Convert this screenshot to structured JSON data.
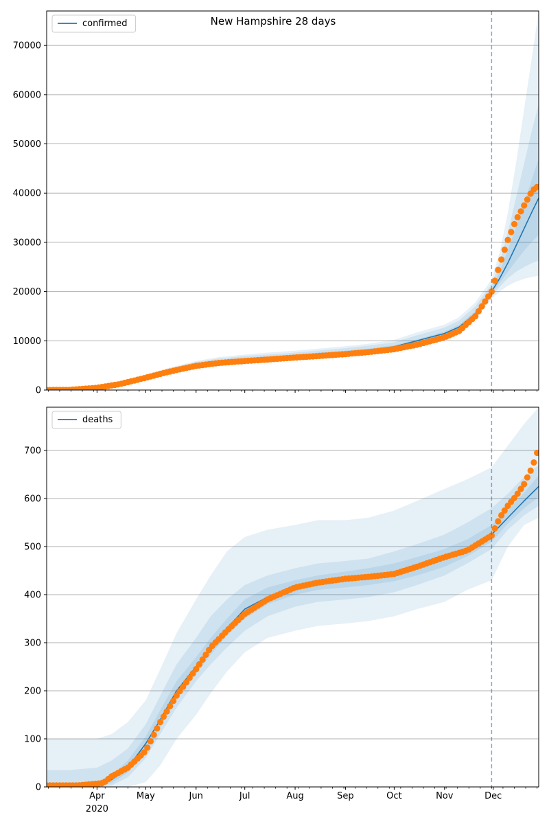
{
  "figure": {
    "title": "New Hampshire 28 days"
  },
  "colors": {
    "line": "#1f77b4",
    "observed": "#ff7f0e",
    "band": "#1f77b4",
    "grid": "#b0b0b0",
    "forecast_marker": "#1f77b4"
  },
  "x_axis": {
    "range": [
      "2020-03-01",
      "2020-12-29"
    ],
    "month_ticks": [
      {
        "date": "2020-04-01",
        "label": "Apr"
      },
      {
        "date": "2020-05-01",
        "label": "May"
      },
      {
        "date": "2020-06-01",
        "label": "Jun"
      },
      {
        "date": "2020-07-01",
        "label": "Jul"
      },
      {
        "date": "2020-08-01",
        "label": "Aug"
      },
      {
        "date": "2020-09-01",
        "label": "Sep"
      },
      {
        "date": "2020-10-01",
        "label": "Oct"
      },
      {
        "date": "2020-11-01",
        "label": "Nov"
      },
      {
        "date": "2020-12-01",
        "label": "Dec"
      }
    ],
    "year_label": "2020",
    "forecast_start": "2020-11-30"
  },
  "chart_data": [
    {
      "type": "line",
      "legend": "confirmed",
      "legend_position": "upper-left",
      "grid": "horizontal",
      "ylim": [
        0,
        77000
      ],
      "yticks": [
        0,
        10000,
        20000,
        30000,
        40000,
        50000,
        60000,
        70000
      ],
      "model": {
        "dates": [
          "2020-03-01",
          "2020-03-15",
          "2020-04-01",
          "2020-04-15",
          "2020-05-01",
          "2020-05-15",
          "2020-06-01",
          "2020-06-15",
          "2020-07-01",
          "2020-07-15",
          "2020-08-01",
          "2020-08-15",
          "2020-09-01",
          "2020-09-15",
          "2020-10-01",
          "2020-10-15",
          "2020-11-01",
          "2020-11-10",
          "2020-11-20",
          "2020-11-30",
          "2020-12-05",
          "2020-12-10",
          "2020-12-15",
          "2020-12-20",
          "2020-12-25",
          "2020-12-29"
        ],
        "values": [
          0,
          40,
          400,
          1300,
          2600,
          3900,
          5200,
          5800,
          6200,
          6500,
          6900,
          7300,
          7700,
          8100,
          8800,
          10000,
          11500,
          12800,
          15500,
          20000,
          22700,
          25800,
          29300,
          32800,
          36300,
          39000
        ],
        "bands": [
          {
            "lower": [
              0,
              0,
              300,
              1100,
              2300,
              3400,
              4500,
              5000,
              5400,
              5700,
              6000,
              6400,
              6800,
              7200,
              7900,
              9100,
              10500,
              11700,
              14300,
              18500,
              20000,
              21200,
              22000,
              22600,
              23000,
              23200
            ],
            "upper": [
              0,
              80,
              550,
              1600,
              3100,
              4500,
              5900,
              6700,
              7200,
              7600,
              8000,
              8400,
              8900,
              9400,
              10200,
              11700,
              13300,
              14800,
              17800,
              22500,
              28000,
              36000,
              46000,
              57000,
              68000,
              77000
            ]
          },
          {
            "lower": [
              0,
              10,
              330,
              1150,
              2400,
              3600,
              4800,
              5300,
              5700,
              6000,
              6300,
              6700,
              7100,
              7500,
              8200,
              9400,
              10800,
              12000,
              14700,
              19000,
              21000,
              22700,
              24000,
              25000,
              25800,
              26300
            ],
            "upper": [
              0,
              70,
              500,
              1500,
              2900,
              4300,
              5700,
              6400,
              6900,
              7200,
              7600,
              8000,
              8500,
              9000,
              9700,
              11100,
              12700,
              14100,
              17000,
              21500,
              26000,
              32000,
              39000,
              46000,
              53000,
              58000
            ]
          },
          {
            "lower": [
              0,
              20,
              360,
              1200,
              2450,
              3700,
              4950,
              5550,
              5950,
              6250,
              6600,
              7000,
              7400,
              7800,
              8500,
              9700,
              11100,
              12300,
              15000,
              19500,
              21800,
              24000,
              26200,
              28300,
              30200,
              31500
            ],
            "upper": [
              0,
              60,
              450,
              1400,
              2750,
              4100,
              5450,
              6050,
              6450,
              6750,
              7200,
              7600,
              8000,
              8400,
              9100,
              10300,
              11900,
              13300,
              16000,
              20500,
              24000,
              28500,
              33000,
              38000,
              43000,
              47000
            ]
          }
        ]
      },
      "observed": {
        "dates": [
          "2020-03-01",
          "2020-03-15",
          "2020-04-01",
          "2020-04-15",
          "2020-05-01",
          "2020-05-15",
          "2020-06-01",
          "2020-06-15",
          "2020-07-01",
          "2020-07-15",
          "2020-08-01",
          "2020-08-15",
          "2020-09-01",
          "2020-09-15",
          "2020-10-01",
          "2020-10-15",
          "2020-11-01",
          "2020-11-10",
          "2020-11-20",
          "2020-11-30",
          "2020-12-05",
          "2020-12-10",
          "2020-12-15",
          "2020-12-20",
          "2020-12-25",
          "2020-12-29"
        ],
        "values": [
          0,
          30,
          450,
          1200,
          2500,
          3700,
          4900,
          5500,
          5900,
          6200,
          6600,
          6900,
          7300,
          7700,
          8300,
          9200,
          10700,
          12000,
          15000,
          20000,
          25500,
          30500,
          34500,
          37500,
          40500,
          41500
        ]
      }
    },
    {
      "type": "line",
      "legend": "deaths",
      "legend_position": "upper-left",
      "grid": "horizontal",
      "ylim": [
        0,
        790
      ],
      "yticks": [
        0,
        100,
        200,
        300,
        400,
        500,
        600,
        700
      ],
      "model": {
        "dates": [
          "2020-03-01",
          "2020-03-15",
          "2020-04-01",
          "2020-04-10",
          "2020-04-20",
          "2020-05-01",
          "2020-05-10",
          "2020-05-20",
          "2020-06-01",
          "2020-06-10",
          "2020-06-20",
          "2020-07-01",
          "2020-07-15",
          "2020-08-01",
          "2020-08-15",
          "2020-09-01",
          "2020-09-15",
          "2020-10-01",
          "2020-10-15",
          "2020-11-01",
          "2020-11-15",
          "2020-11-30",
          "2020-12-10",
          "2020-12-20",
          "2020-12-29"
        ],
        "values": [
          0,
          1,
          5,
          15,
          40,
          90,
          140,
          200,
          250,
          290,
          330,
          370,
          395,
          415,
          425,
          432,
          438,
          445,
          458,
          475,
          495,
          525,
          560,
          595,
          625
        ],
        "bands": [
          {
            "lower": [
              0,
              0,
              0,
              0,
              0,
              10,
              45,
              100,
              150,
              195,
              240,
              280,
              310,
              325,
              335,
              340,
              345,
              355,
              370,
              385,
              410,
              430,
              500,
              545,
              560
            ],
            "upper": [
              100,
              100,
              100,
              110,
              135,
              180,
              245,
              320,
              390,
              440,
              490,
              520,
              535,
              545,
              555,
              555,
              560,
              575,
              595,
              620,
              640,
              665,
              710,
              755,
              790
            ]
          },
          {
            "lower": [
              0,
              0,
              0,
              3,
              20,
              60,
              110,
              165,
              220,
              255,
              290,
              325,
              355,
              375,
              385,
              390,
              395,
              405,
              420,
              440,
              465,
              495,
              535,
              565,
              585
            ],
            "upper": [
              35,
              35,
              40,
              55,
              80,
              130,
              190,
              255,
              310,
              355,
              390,
              420,
              440,
              455,
              465,
              470,
              475,
              490,
              505,
              525,
              550,
              580,
              610,
              645,
              670
            ]
          },
          {
            "lower": [
              0,
              0,
              2,
              8,
              30,
              75,
              125,
              185,
              235,
              275,
              315,
              350,
              380,
              400,
              410,
              415,
              420,
              428,
              440,
              458,
              480,
              510,
              548,
              580,
              603
            ],
            "upper": [
              8,
              8,
              12,
              25,
              55,
              105,
              160,
              220,
              270,
              310,
              350,
              390,
              415,
              430,
              440,
              448,
              455,
              465,
              478,
              495,
              515,
              545,
              575,
              612,
              648
            ]
          }
        ]
      },
      "observed": {
        "dates": [
          "2020-03-01",
          "2020-03-20",
          "2020-04-05",
          "2020-04-10",
          "2020-04-20",
          "2020-05-01",
          "2020-05-10",
          "2020-05-20",
          "2020-06-01",
          "2020-06-10",
          "2020-06-20",
          "2020-07-01",
          "2020-07-15",
          "2020-08-01",
          "2020-08-15",
          "2020-09-01",
          "2020-09-15",
          "2020-10-01",
          "2020-10-15",
          "2020-11-01",
          "2020-11-15",
          "2020-11-30",
          "2020-12-05",
          "2020-12-10",
          "2020-12-15",
          "2020-12-20",
          "2020-12-25",
          "2020-12-29"
        ],
        "values": [
          3,
          3,
          8,
          22,
          40,
          75,
          135,
          190,
          245,
          290,
          325,
          360,
          390,
          415,
          425,
          433,
          437,
          443,
          458,
          478,
          492,
          523,
          560,
          585,
          605,
          630,
          665,
          705
        ]
      }
    }
  ]
}
